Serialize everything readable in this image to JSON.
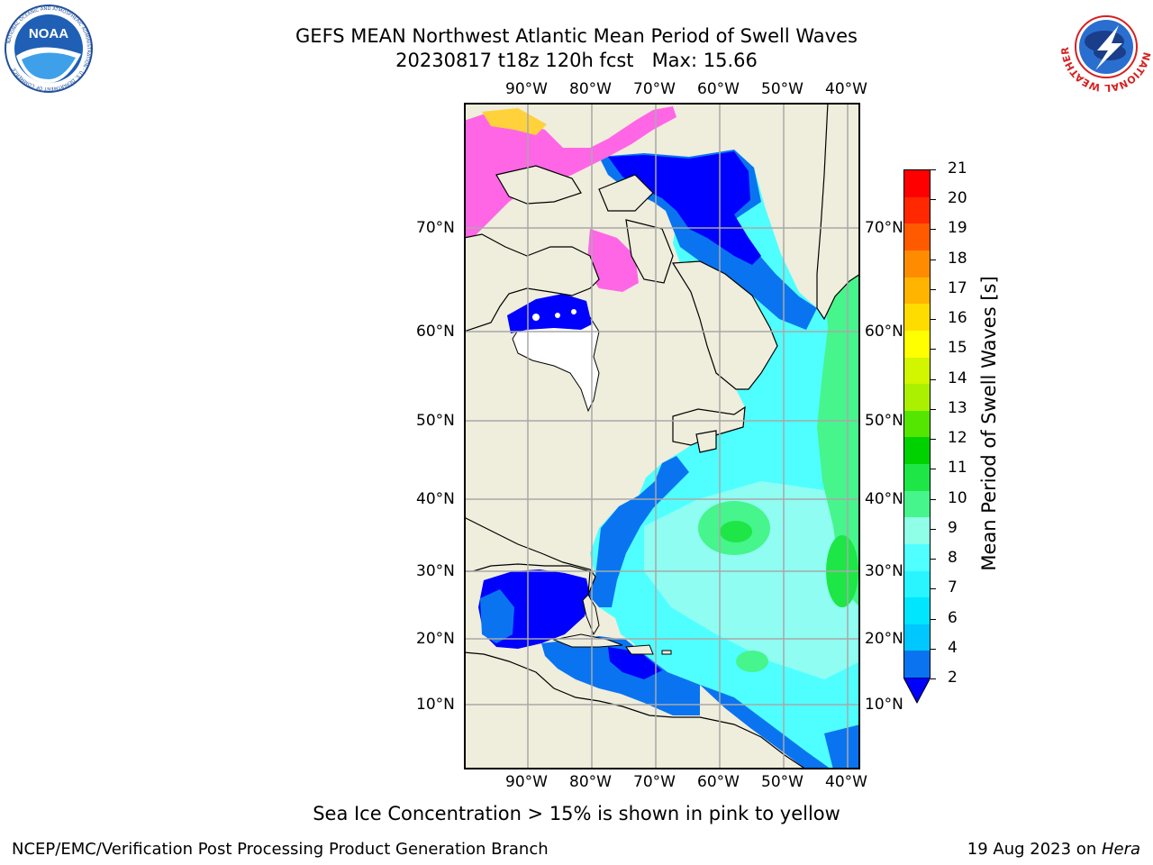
{
  "header": {
    "title_line1": "GEFS MEAN Northwest Atlantic Mean Period of Swell Waves",
    "title_line2": "20230817 t18z 120h fcst   Max: 15.66"
  },
  "logos": {
    "left_name": "NOAA",
    "left_ring_text": "NATIONAL OCEANIC AND ATMOSPHERIC ADMINISTRATION · U.S. DEPARTMENT OF COMMERCE",
    "right_ring_text": "NATIONAL WEATHER SERVICE"
  },
  "map": {
    "lon_labels": [
      "90°W",
      "80°W",
      "70°W",
      "60°W",
      "50°W",
      "40°W"
    ],
    "lat_labels": [
      "70°N",
      "60°N",
      "50°N",
      "40°N",
      "30°N",
      "20°N",
      "10°N"
    ]
  },
  "colorbar": {
    "label": "Mean Period of Swell Waves [s]",
    "ticks": [
      "2",
      "4",
      "6",
      "7",
      "8",
      "9",
      "10",
      "11",
      "12",
      "13",
      "14",
      "15",
      "16",
      "17",
      "18",
      "19",
      "20",
      "21"
    ],
    "colors": [
      "#0a74f0",
      "#00c8ff",
      "#00e6ff",
      "#28f5ff",
      "#50ffff",
      "#90ffe8",
      "#46f58c",
      "#1ee646",
      "#00d200",
      "#55e600",
      "#aaf000",
      "#d2f500",
      "#ffff00",
      "#ffdc00",
      "#ffb400",
      "#ff8c00",
      "#ff5a00",
      "#ff2800",
      "#ff0000"
    ],
    "under_color": "#0000ff"
  },
  "note": "Sea Ice Concentration > 15% is shown in pink to yellow",
  "footer": {
    "left": "NCEP/EMC/Verification Post Processing Product Generation Branch",
    "date": "19 Aug 2023 on ",
    "machine": "Hera"
  }
}
